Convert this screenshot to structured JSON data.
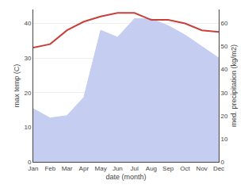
{
  "chart_data": {
    "type": "line",
    "xlabel": "date (month)",
    "ylabel": "max temp (C)",
    "y2label": "med. precipitation (kg/m2)",
    "categories": [
      "Jan",
      "Feb",
      "Mar",
      "Apr",
      "May",
      "Jun",
      "Jul",
      "Aug",
      "Sep",
      "Oct",
      "Nov",
      "Dec"
    ],
    "series": [
      {
        "type": "area",
        "axis": "y2",
        "color": "#c5cdf0",
        "values": [
          23,
          19,
          20,
          28,
          57,
          54,
          62,
          62,
          59,
          55,
          50,
          45
        ]
      },
      {
        "type": "line",
        "color": "#c8403a",
        "values": [
          33,
          34,
          38,
          40.5,
          42,
          43,
          43,
          41,
          41,
          40,
          38,
          37.5
        ]
      }
    ],
    "ylim": [
      0,
      44
    ],
    "yticks": [
      0,
      10,
      20,
      30,
      40
    ],
    "y2lim": [
      0,
      66
    ],
    "y2ticks": [
      0,
      10,
      20,
      30,
      40,
      50,
      60
    ],
    "grid": true
  }
}
